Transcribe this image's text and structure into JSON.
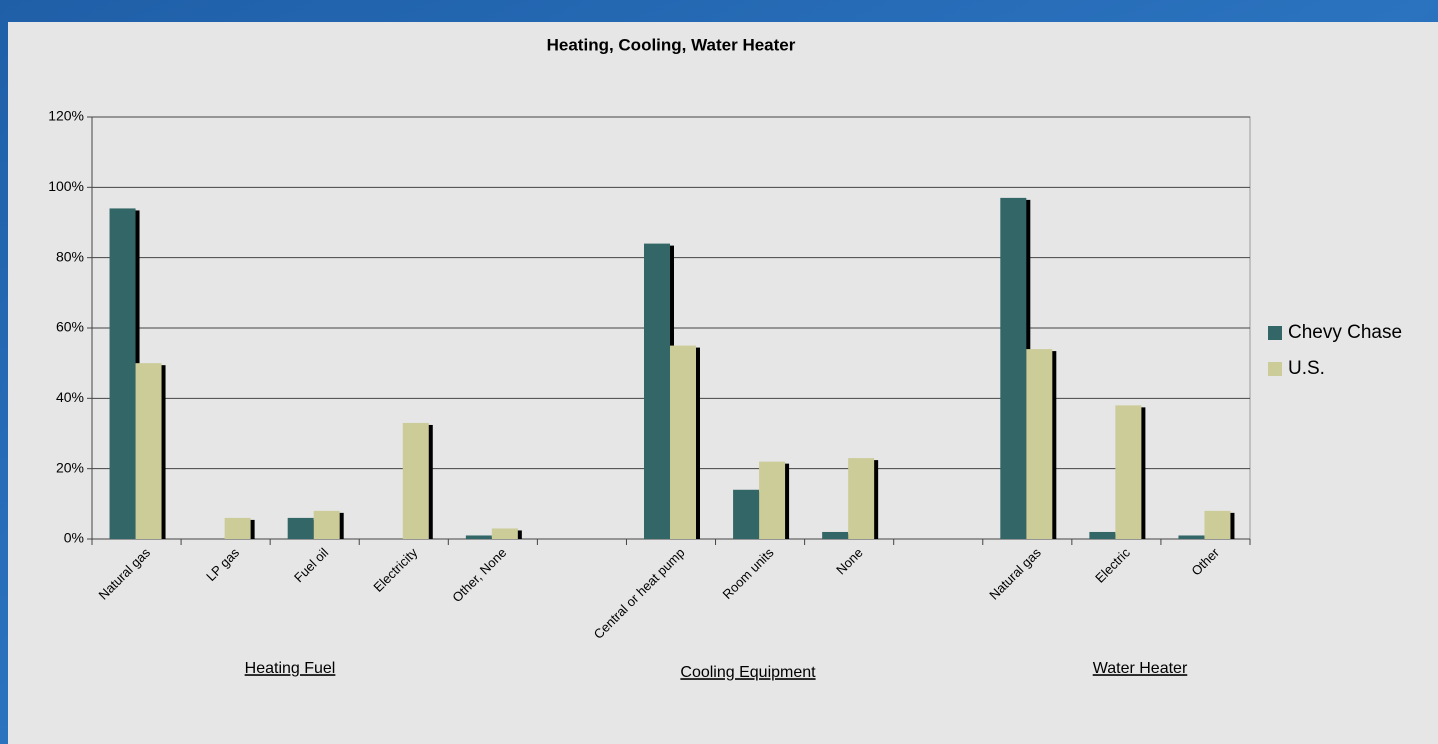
{
  "chart_data": {
    "type": "bar",
    "title": "Heating, Cooling, Water Heater",
    "categories": [
      "Natural gas",
      "LP gas",
      "Fuel oil",
      "Electricity",
      "Other, None",
      null,
      "Central or heat pump",
      "Room units",
      "None",
      null,
      "Natural gas",
      "Electric",
      "Other"
    ],
    "series": [
      {
        "name": "Chevy Chase",
        "color": "#336666",
        "values": [
          94,
          0,
          6,
          0,
          1,
          null,
          84,
          14,
          2,
          null,
          97,
          2,
          1
        ]
      },
      {
        "name": "U.S.",
        "color": "#cccc99",
        "values": [
          50,
          6,
          8,
          33,
          3,
          null,
          55,
          22,
          23,
          null,
          54,
          38,
          8
        ]
      }
    ],
    "group_labels": [
      "Heating Fuel",
      "Cooling Equipment",
      "Water Heater"
    ],
    "ylim": [
      0,
      120
    ],
    "yticks": [
      {
        "value": 0,
        "label": "0%"
      },
      {
        "value": 20,
        "label": "20%"
      },
      {
        "value": 40,
        "label": "40%"
      },
      {
        "value": 60,
        "label": "60%"
      },
      {
        "value": 80,
        "label": "80%"
      },
      {
        "value": 100,
        "label": "100%"
      },
      {
        "value": 120,
        "label": "120%"
      }
    ],
    "grid": true,
    "legend": "right"
  }
}
